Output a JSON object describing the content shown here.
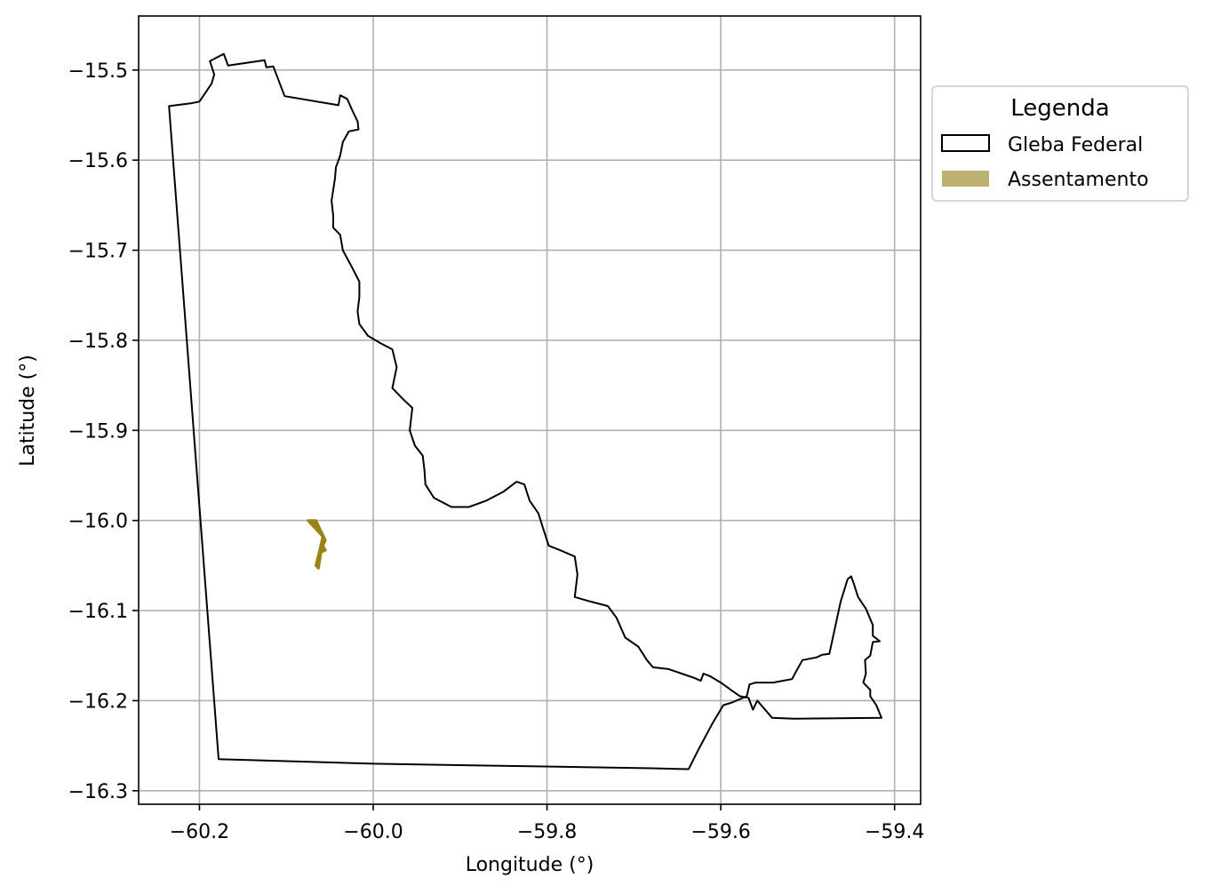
{
  "map": {
    "xlabel": "Longitude (°)",
    "ylabel": "Latitude (°)",
    "xlim": [
      -60.27,
      -59.37
    ],
    "ylim": [
      -16.315,
      -15.44
    ],
    "grid": true,
    "x_ticks": [
      -60.2,
      -60.0,
      -59.8,
      -59.6,
      -59.4
    ],
    "y_ticks": [
      -15.5,
      -15.6,
      -15.7,
      -15.8,
      -15.9,
      -16.0,
      -16.1,
      -16.2,
      -16.3
    ],
    "x_tick_labels": [
      "−60.2",
      "−60.0",
      "−59.8",
      "−59.6",
      "−59.4"
    ],
    "y_tick_labels": [
      "−15.5",
      "−15.6",
      "−15.7",
      "−15.8",
      "−15.9",
      "−16.0",
      "−16.1",
      "−16.2",
      "−16.3"
    ]
  },
  "legend": {
    "title": "Legenda",
    "placement": "outside-right-top",
    "items": [
      {
        "label": "Gleba Federal",
        "style": "outline",
        "color": "#000000"
      },
      {
        "label": "Assentamento",
        "style": "fill",
        "color": "#BDB16F"
      }
    ]
  },
  "layers": {
    "gleba_federal": {
      "edge_color": "#000000",
      "face_color": "none",
      "coords": [
        [
          -60.235,
          -15.54
        ],
        [
          -60.21,
          -15.537
        ],
        [
          -60.2,
          -15.535
        ],
        [
          -60.193,
          -15.525
        ],
        [
          -60.186,
          -15.515
        ],
        [
          -60.183,
          -15.505
        ],
        [
          -60.188,
          -15.49
        ],
        [
          -60.172,
          -15.482
        ],
        [
          -60.167,
          -15.495
        ],
        [
          -60.125,
          -15.489
        ],
        [
          -60.123,
          -15.497
        ],
        [
          -60.115,
          -15.496
        ],
        [
          -60.102,
          -15.529
        ],
        [
          -60.04,
          -15.539
        ],
        [
          -60.038,
          -15.528
        ],
        [
          -60.03,
          -15.532
        ],
        [
          -60.024,
          -15.545
        ],
        [
          -60.018,
          -15.557
        ],
        [
          -60.017,
          -15.566
        ],
        [
          -60.028,
          -15.568
        ],
        [
          -60.035,
          -15.58
        ],
        [
          -60.038,
          -15.595
        ],
        [
          -60.043,
          -15.608
        ],
        [
          -60.044,
          -15.62
        ],
        [
          -60.046,
          -15.633
        ],
        [
          -60.048,
          -15.645
        ],
        [
          -60.046,
          -15.662
        ],
        [
          -60.046,
          -15.675
        ],
        [
          -60.038,
          -15.683
        ],
        [
          -60.035,
          -15.7
        ],
        [
          -60.025,
          -15.718
        ],
        [
          -60.016,
          -15.735
        ],
        [
          -60.016,
          -15.752
        ],
        [
          -60.018,
          -15.768
        ],
        [
          -60.016,
          -15.782
        ],
        [
          -60.006,
          -15.795
        ],
        [
          -59.992,
          -15.803
        ],
        [
          -59.978,
          -15.81
        ],
        [
          -59.973,
          -15.83
        ],
        [
          -59.978,
          -15.853
        ],
        [
          -59.965,
          -15.866
        ],
        [
          -59.955,
          -15.875
        ],
        [
          -59.958,
          -15.9
        ],
        [
          -59.952,
          -15.917
        ],
        [
          -59.943,
          -15.928
        ],
        [
          -59.941,
          -15.945
        ],
        [
          -59.94,
          -15.96
        ],
        [
          -59.93,
          -15.975
        ],
        [
          -59.91,
          -15.985
        ],
        [
          -59.89,
          -15.985
        ],
        [
          -59.87,
          -15.978
        ],
        [
          -59.85,
          -15.968
        ],
        [
          -59.835,
          -15.957
        ],
        [
          -59.826,
          -15.96
        ],
        [
          -59.82,
          -15.978
        ],
        [
          -59.81,
          -15.992
        ],
        [
          -59.803,
          -16.013
        ],
        [
          -59.798,
          -16.028
        ],
        [
          -59.785,
          -16.033
        ],
        [
          -59.768,
          -16.04
        ],
        [
          -59.765,
          -16.06
        ],
        [
          -59.768,
          -16.085
        ],
        [
          -59.75,
          -16.09
        ],
        [
          -59.73,
          -16.095
        ],
        [
          -59.72,
          -16.108
        ],
        [
          -59.71,
          -16.13
        ],
        [
          -59.695,
          -16.14
        ],
        [
          -59.685,
          -16.155
        ],
        [
          -59.678,
          -16.163
        ],
        [
          -59.66,
          -16.165
        ],
        [
          -59.645,
          -16.17
        ],
        [
          -59.63,
          -16.175
        ],
        [
          -59.623,
          -16.178
        ],
        [
          -59.62,
          -16.17
        ],
        [
          -59.612,
          -16.173
        ],
        [
          -59.6,
          -16.18
        ],
        [
          -59.59,
          -16.187
        ],
        [
          -59.578,
          -16.195
        ],
        [
          -59.568,
          -16.197
        ],
        [
          -59.563,
          -16.21
        ],
        [
          -59.558,
          -16.2
        ],
        [
          -59.541,
          -16.219
        ],
        [
          -59.516,
          -16.22
        ],
        [
          -59.415,
          -16.219
        ],
        [
          -59.421,
          -16.205
        ],
        [
          -59.428,
          -16.195
        ],
        [
          -59.428,
          -16.188
        ],
        [
          -59.436,
          -16.18
        ],
        [
          -59.433,
          -16.17
        ],
        [
          -59.434,
          -16.155
        ],
        [
          -59.428,
          -16.15
        ],
        [
          -59.425,
          -16.135
        ],
        [
          -59.417,
          -16.134
        ],
        [
          -59.425,
          -16.128
        ],
        [
          -59.425,
          -16.116
        ],
        [
          -59.433,
          -16.098
        ],
        [
          -59.442,
          -16.085
        ],
        [
          -59.447,
          -16.07
        ],
        [
          -59.45,
          -16.062
        ],
        [
          -59.454,
          -16.065
        ],
        [
          -59.462,
          -16.09
        ],
        [
          -59.475,
          -16.148
        ],
        [
          -59.483,
          -16.149
        ],
        [
          -59.49,
          -16.152
        ],
        [
          -59.506,
          -16.155
        ],
        [
          -59.513,
          -16.167
        ],
        [
          -59.518,
          -16.176
        ],
        [
          -59.54,
          -16.18
        ],
        [
          -59.56,
          -16.18
        ],
        [
          -59.567,
          -16.182
        ],
        [
          -59.57,
          -16.195
        ],
        [
          -59.587,
          -16.202
        ],
        [
          -59.597,
          -16.205
        ],
        [
          -59.61,
          -16.226
        ],
        [
          -59.625,
          -16.253
        ],
        [
          -59.637,
          -16.276
        ],
        [
          -59.68,
          -16.275
        ],
        [
          -60.0,
          -16.27
        ],
        [
          -60.178,
          -16.265
        ],
        [
          -60.235,
          -15.54
        ]
      ]
    },
    "assentamento": {
      "color": "#9A8417",
      "coords": [
        [
          -60.075,
          -16.0
        ],
        [
          -60.066,
          -16.0
        ],
        [
          -60.055,
          -16.022
        ],
        [
          -60.058,
          -16.028
        ],
        [
          -60.055,
          -16.033
        ],
        [
          -60.06,
          -16.035
        ],
        [
          -60.063,
          -16.053
        ],
        [
          -60.066,
          -16.05
        ],
        [
          -60.061,
          -16.03
        ],
        [
          -60.058,
          -16.018
        ],
        [
          -60.075,
          -16.0
        ]
      ]
    }
  }
}
